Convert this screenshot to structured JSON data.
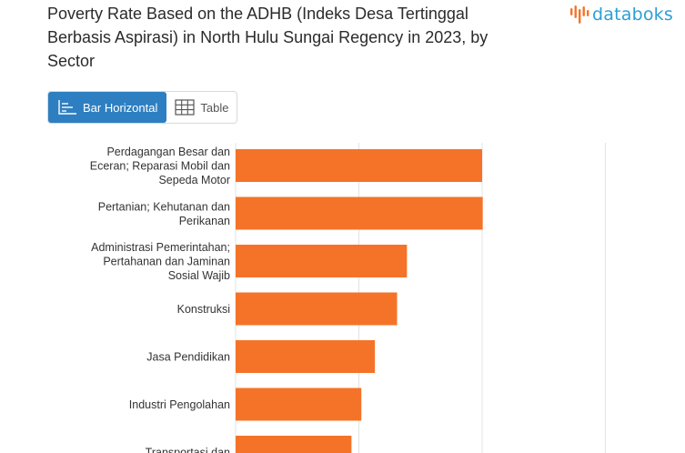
{
  "header": {
    "title": "Poverty Rate Based on the ADHB (Indeks Desa Tertinggal Berbasis Aspirasi) in North Hulu Sungai Regency in 2023, by Sector",
    "logo_text": "databoks"
  },
  "toggle": {
    "bar_label": "Bar Horizontal",
    "table_label": "Table"
  },
  "colors": {
    "bar": "#f47328",
    "accent": "#2d7fc1",
    "grid": "#e3e3e3"
  },
  "chart_data": {
    "type": "bar",
    "orientation": "horizontal",
    "title": "Poverty Rate Based on the ADHB (Indeks Desa Tertinggal Berbasis Aspirasi) in North Hulu Sungai Regency in 2023, by Sector",
    "categories": [
      [
        "Perdagangan Besar dan",
        "Eceran; Reparasi Mobil dan",
        "Sepeda Motor"
      ],
      [
        "Pertanian; Kehutanan dan",
        "Perikanan"
      ],
      [
        "Administrasi Pemerintahan;",
        "Pertahanan dan Jaminan",
        "Sosial Wajib"
      ],
      [
        "Konstruksi"
      ],
      [
        "Jasa Pendidikan"
      ],
      [
        "Industri Pengolahan"
      ],
      [
        "Transportasi dan"
      ]
    ],
    "values": [
      20.0,
      20.05,
      13.9,
      13.1,
      11.3,
      10.2,
      9.4
    ],
    "xlim": [
      0,
      30
    ],
    "grid": true,
    "gridlines": [
      0,
      10,
      20,
      30
    ]
  }
}
